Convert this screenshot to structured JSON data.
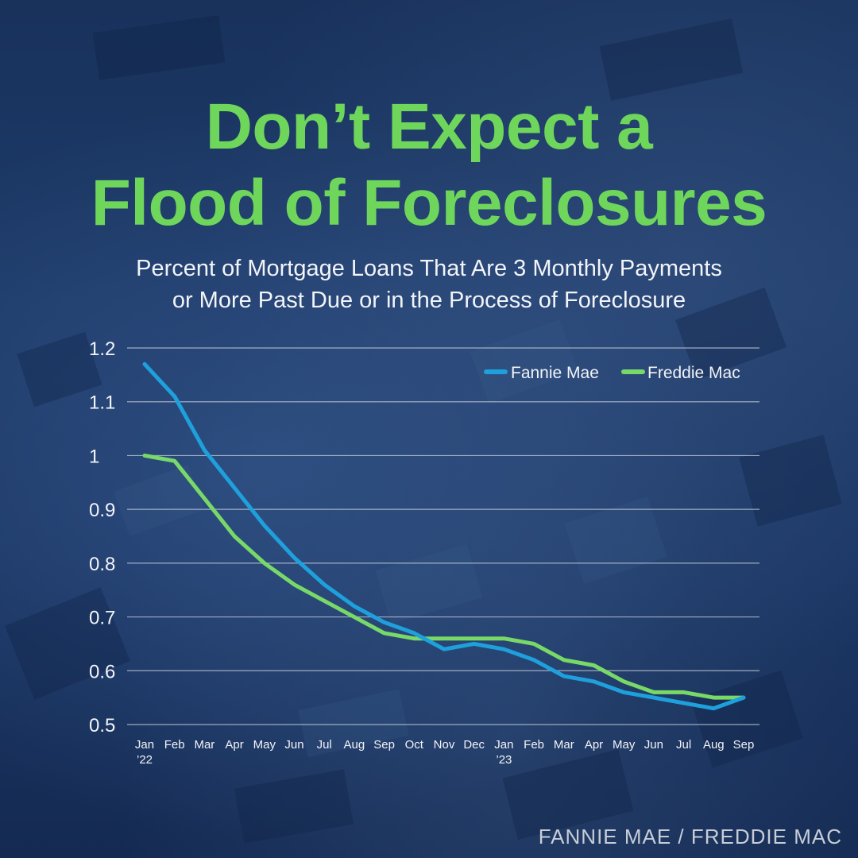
{
  "title": {
    "line1": "Don’t Expect a",
    "line2": "Flood of Foreclosures"
  },
  "subtitle": {
    "line1": "Percent of Mortgage Loans That Are 3 Monthly Payments",
    "line2": "or More Past Due or in the Process of Foreclosure"
  },
  "source": "FANNIE MAE / FREDDIE MAC",
  "colors": {
    "title": "#6fd65c",
    "fannie": "#1ea0dc",
    "freddie": "#78d868",
    "grid": "#c8d0dc",
    "text": "#f2f4f8"
  },
  "chart_data": {
    "type": "line",
    "x": [
      "Jan",
      "Feb",
      "Mar",
      "Apr",
      "May",
      "Jun",
      "Jul",
      "Aug",
      "Sep",
      "Oct",
      "Nov",
      "Dec",
      "Jan",
      "Feb",
      "Mar",
      "Apr",
      "May",
      "Jun",
      "Jul",
      "Aug",
      "Sep"
    ],
    "x_sublabels": [
      "’22",
      "",
      "",
      "",
      "",
      "",
      "",
      "",
      "",
      "",
      "",
      "",
      "’23",
      "",
      "",
      "",
      "",
      "",
      "",
      "",
      ""
    ],
    "series": [
      {
        "name": "Fannie Mae",
        "color": "#1ea0dc",
        "values": [
          1.17,
          1.11,
          1.01,
          0.94,
          0.87,
          0.81,
          0.76,
          0.72,
          0.69,
          0.67,
          0.64,
          0.65,
          0.64,
          0.62,
          0.59,
          0.58,
          0.56,
          0.55,
          0.54,
          0.53,
          0.55
        ]
      },
      {
        "name": "Freddie Mac",
        "color": "#78d868",
        "values": [
          1.0,
          0.99,
          0.92,
          0.85,
          0.8,
          0.76,
          0.73,
          0.7,
          0.67,
          0.66,
          0.66,
          0.66,
          0.66,
          0.65,
          0.62,
          0.61,
          0.58,
          0.56,
          0.56,
          0.55,
          0.55
        ]
      }
    ],
    "yticks": [
      "1.2",
      "1.1",
      "1",
      "0.9",
      "0.8",
      "0.7",
      "0.6",
      "0.5"
    ],
    "ylim": [
      0.5,
      1.2
    ],
    "grid": true,
    "legend": "top-right"
  }
}
